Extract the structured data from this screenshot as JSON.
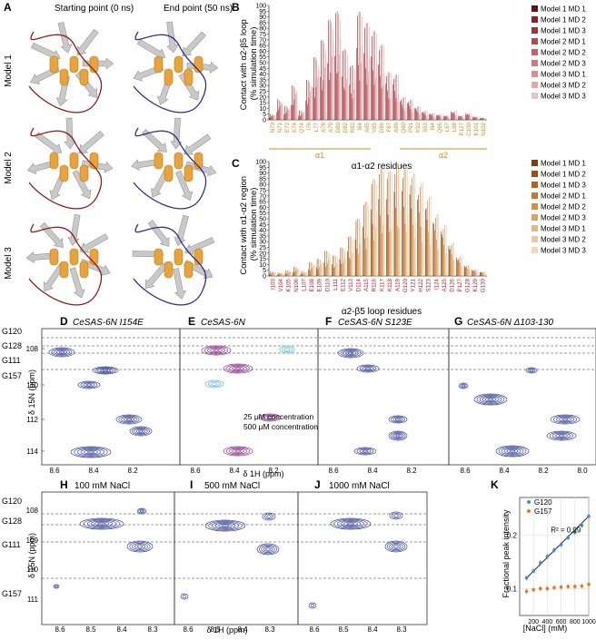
{
  "panels": {
    "A": "A",
    "B": "B",
    "C": "C",
    "D": "D",
    "E": "E",
    "F": "F",
    "G": "G",
    "H": "H",
    "I": "I",
    "J": "J",
    "K": "K"
  },
  "panelA": {
    "col_start": "Starting point (0 ns)",
    "col_end": "End point (50 ns)",
    "rows": [
      "Model 1",
      "Model 2",
      "Model 3"
    ]
  },
  "colors": {
    "B_base": "#8e1f22",
    "C_base": "#b5651d",
    "helix": "#e8a33a",
    "sheet": "#c9c9c9",
    "loop_start": "#8c1c1c",
    "loop_end": "#2d2f8c",
    "contour": "#3d4a9a",
    "purple": "#8a3a8a",
    "cyan": "#5ab8d8",
    "g120": "#3a8fd0",
    "g157": "#e07b2a"
  },
  "legend_items": [
    "Model 1 MD 1",
    "Model 1 MD 2",
    "Model 1 MD 3",
    "Model 2 MD 1",
    "Model 2 MD 2",
    "Model 2 MD 3",
    "Model 3 MD 1",
    "Model 3 MD 2",
    "Model 3 MD 3"
  ],
  "chart_data": [
    {
      "type": "bar",
      "panel": "B",
      "ylabel": "Contact with α2-β5 loop (% simulation time)",
      "xlabel": "α1-α2 residues",
      "ylim": [
        0,
        100
      ],
      "yticks": [
        "0",
        "5",
        "10",
        "15",
        "20",
        "25",
        "30",
        "35",
        "40",
        "45",
        "50",
        "55",
        "60",
        "65",
        "70",
        "75",
        "80",
        "85",
        "90",
        "95",
        "100"
      ],
      "categories": [
        "N70",
        "N71",
        "E73",
        "K74",
        "Q74",
        "I76",
        "L77",
        "A78",
        "A79",
        "D80",
        "D82",
        "R83",
        "I84",
        "A85",
        "V85",
        "D86",
        "F87",
        "A89",
        "Q90",
        "P91",
        "K92",
        "S93",
        "I94",
        "Q96",
        "L97",
        "L98",
        "P127",
        "C100",
        "K101",
        "N102"
      ],
      "region_labels": {
        "a1": "α1",
        "a2": "α2"
      },
      "peaks": [
        5,
        18,
        12,
        30,
        8,
        35,
        55,
        70,
        88,
        95,
        62,
        48,
        95,
        85,
        78,
        66,
        42,
        40,
        20,
        18,
        12,
        8,
        6,
        5,
        4,
        8,
        4,
        6,
        3,
        2
      ]
    },
    {
      "type": "bar",
      "panel": "C",
      "ylabel": "Contact with α1-α2 region (% simulation time)",
      "xlabel": "α2-β5 loop residues",
      "ylim": [
        0,
        100
      ],
      "yticks": [
        "0",
        "5",
        "10",
        "15",
        "20",
        "25",
        "30",
        "35",
        "40",
        "45",
        "50",
        "55",
        "60",
        "65",
        "70",
        "75",
        "80",
        "85",
        "90",
        "95",
        "100"
      ],
      "categories": [
        "I103",
        "V104",
        "K105",
        "N106",
        "L107",
        "E108",
        "E109",
        "D110",
        "L111",
        "E112",
        "V113",
        "D114",
        "A115",
        "R116",
        "K117",
        "K118",
        "A119",
        "G120",
        "Y121",
        "H122",
        "S123",
        "I124",
        "A125",
        "D126",
        "P127",
        "G128",
        "K129",
        "G130"
      ],
      "peaks": [
        4,
        3,
        5,
        8,
        4,
        12,
        15,
        22,
        18,
        25,
        35,
        50,
        65,
        85,
        95,
        92,
        98,
        96,
        90,
        82,
        70,
        55,
        45,
        30,
        18,
        10,
        6,
        4
      ]
    },
    {
      "type": "scatter",
      "panel": "K",
      "title": "",
      "xlabel": "[NaCl] (mM)",
      "ylabel": "Fractional peak intensity",
      "xlim": [
        0,
        1000
      ],
      "ylim": [
        0.05,
        0.27
      ],
      "xticks": [
        "200",
        "400",
        "600",
        "800",
        "1000"
      ],
      "yticks": [
        "0.1",
        "0.2"
      ],
      "annotation": "R² = 0.99",
      "series": [
        {
          "name": "G120",
          "x": [
            100,
            200,
            300,
            400,
            500,
            600,
            700,
            800,
            900,
            1000
          ],
          "y": [
            0.12,
            0.133,
            0.148,
            0.16,
            0.172,
            0.182,
            0.195,
            0.205,
            0.218,
            0.235
          ]
        },
        {
          "name": "G157",
          "x": [
            100,
            200,
            300,
            400,
            500,
            600,
            700,
            800,
            900,
            1000
          ],
          "y": [
            0.095,
            0.098,
            0.1,
            0.1,
            0.102,
            0.103,
            0.104,
            0.104,
            0.105,
            0.108
          ]
        }
      ]
    }
  ],
  "nmr": {
    "D_title": "CeSAS-6N I154E",
    "E_title": "CeSAS-6N",
    "F_title": "CeSAS-6N S123E",
    "G_title": "CeSAS-6N Δ103-130",
    "H_title": "100 mM NaCl",
    "I_title": "500 mM NaCl",
    "J_title": "1000 mM NaCl",
    "ylabel_top": "δ 15N (ppm)",
    "xlabel_top": "δ 1H (ppm)",
    "ylabel_bot": "δ 15N (ppm)",
    "xlabel_bot": "δ 1H (ppm)",
    "yticks_top": [
      "108",
      "110",
      "112",
      "114"
    ],
    "xticks_top": [
      "8.6",
      "8.4",
      "8.2",
      "8.6",
      "8.4",
      "8.2",
      "8.6",
      "8.4",
      "8.2",
      "8.6",
      "8.4",
      "8.2",
      "8.0"
    ],
    "yticks_bot": [
      "108",
      "109",
      "110",
      "111"
    ],
    "xticks_bot": [
      "8.6",
      "8.5",
      "8.4",
      "8.3",
      "8.6",
      "8.5",
      "8.4",
      "8.3",
      "8.6",
      "8.5",
      "8.4",
      "8.3"
    ],
    "residues_top": [
      "G120",
      "G128",
      "G111",
      "G157"
    ],
    "residues_bot": [
      "G120",
      "G128",
      "G111",
      "G157"
    ],
    "conc_25": "25 μM concentration",
    "conc_500": "500 μM concentration"
  }
}
